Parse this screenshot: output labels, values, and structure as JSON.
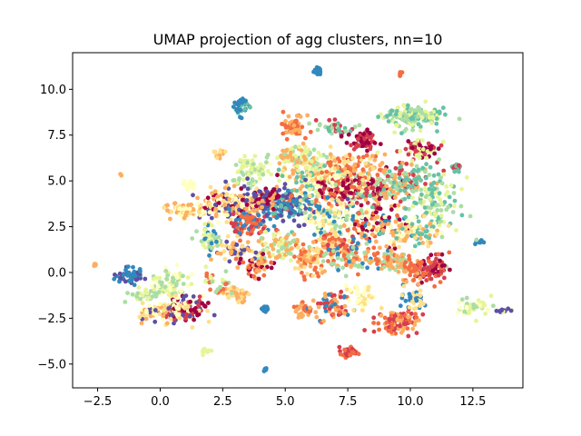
{
  "chart_data": {
    "type": "scatter",
    "title": "UMAP projection of agg clusters, nn=10",
    "xlabel": "",
    "ylabel": "",
    "xlim": [
      -3.5,
      14.5
    ],
    "ylim": [
      -6.3,
      12.0
    ],
    "xticks": [
      -2.5,
      0.0,
      2.5,
      5.0,
      7.5,
      10.0,
      12.5
    ],
    "xtick_labels": [
      "−2.5",
      "0.0",
      "2.5",
      "5.0",
      "7.5",
      "10.0",
      "12.5"
    ],
    "yticks": [
      -5.0,
      -2.5,
      0.0,
      2.5,
      5.0,
      7.5,
      10.0
    ],
    "ytick_labels": [
      "−5.0",
      "−2.5",
      "0.0",
      "2.5",
      "5.0",
      "7.5",
      "10.0"
    ],
    "grid": false,
    "legend": "none",
    "colormap": "Spectral",
    "colors": [
      "#9e0142",
      "#d53e4f",
      "#f46d43",
      "#fdae61",
      "#fee08b",
      "#ffffbf",
      "#e6f598",
      "#abdda4",
      "#66c2a5",
      "#3288bd",
      "#5e4fa2"
    ],
    "clusters": [
      {
        "cx": 6.3,
        "cy": 11.0,
        "sx": 0.08,
        "sy": 0.1,
        "n": 30,
        "c": [
          9
        ]
      },
      {
        "cx": 9.6,
        "cy": 10.85,
        "sx": 0.05,
        "sy": 0.05,
        "n": 6,
        "c": [
          2
        ]
      },
      {
        "cx": 3.2,
        "cy": 9.0,
        "sx": 0.15,
        "sy": 0.25,
        "n": 40,
        "c": [
          9,
          8
        ]
      },
      {
        "cx": 5.3,
        "cy": 8.0,
        "sx": 0.25,
        "sy": 0.3,
        "n": 60,
        "c": [
          3,
          2
        ]
      },
      {
        "cx": 7.0,
        "cy": 7.9,
        "sx": 0.3,
        "sy": 0.2,
        "n": 40,
        "c": [
          1,
          7,
          8
        ]
      },
      {
        "cx": 10.0,
        "cy": 8.5,
        "sx": 0.6,
        "sy": 0.3,
        "n": 160,
        "c": [
          7,
          8,
          6
        ]
      },
      {
        "cx": 8.1,
        "cy": 7.2,
        "sx": 0.3,
        "sy": 0.25,
        "n": 60,
        "c": [
          0,
          1
        ]
      },
      {
        "cx": 10.3,
        "cy": 6.8,
        "sx": 0.4,
        "sy": 0.3,
        "n": 70,
        "c": [
          1,
          0,
          6
        ]
      },
      {
        "cx": 11.8,
        "cy": 5.7,
        "sx": 0.12,
        "sy": 0.1,
        "n": 20,
        "c": [
          1,
          8
        ]
      },
      {
        "cx": 3.6,
        "cy": 5.5,
        "sx": 0.4,
        "sy": 0.5,
        "n": 70,
        "c": [
          7,
          6
        ]
      },
      {
        "cx": 6.2,
        "cy": 5.2,
        "sx": 0.8,
        "sy": 0.6,
        "n": 180,
        "c": [
          4,
          3,
          5,
          6,
          8
        ]
      },
      {
        "cx": 8.4,
        "cy": 4.5,
        "sx": 0.6,
        "sy": 0.5,
        "n": 140,
        "c": [
          0,
          1,
          7,
          3
        ]
      },
      {
        "cx": 7.2,
        "cy": 4.6,
        "sx": 0.5,
        "sy": 0.4,
        "n": 100,
        "c": [
          1,
          0,
          2,
          5
        ]
      },
      {
        "cx": 9.8,
        "cy": 5.0,
        "sx": 0.7,
        "sy": 0.6,
        "n": 150,
        "c": [
          8,
          7,
          1,
          3
        ]
      },
      {
        "cx": 11.0,
        "cy": 3.8,
        "sx": 0.5,
        "sy": 0.7,
        "n": 100,
        "c": [
          7,
          6,
          8
        ]
      },
      {
        "cx": 2.9,
        "cy": 3.7,
        "sx": 0.6,
        "sy": 0.5,
        "n": 180,
        "c": [
          4,
          5,
          3,
          10,
          0
        ]
      },
      {
        "cx": 3.6,
        "cy": 2.6,
        "sx": 0.4,
        "sy": 0.4,
        "n": 90,
        "c": [
          1,
          2,
          9
        ]
      },
      {
        "cx": 1.0,
        "cy": 3.4,
        "sx": 0.4,
        "sy": 0.2,
        "n": 80,
        "c": [
          4,
          5,
          3
        ]
      },
      {
        "cx": 1.2,
        "cy": 4.8,
        "sx": 0.15,
        "sy": 0.1,
        "n": 15,
        "c": [
          5
        ]
      },
      {
        "cx": 5.2,
        "cy": 3.6,
        "sx": 0.6,
        "sy": 0.5,
        "n": 140,
        "c": [
          10,
          9,
          2,
          8
        ]
      },
      {
        "cx": 4.2,
        "cy": 4.0,
        "sx": 0.4,
        "sy": 0.4,
        "n": 90,
        "c": [
          10,
          0,
          3
        ]
      },
      {
        "cx": 6.8,
        "cy": 3.0,
        "sx": 0.6,
        "sy": 0.5,
        "n": 120,
        "c": [
          5,
          4,
          7,
          9
        ]
      },
      {
        "cx": 8.6,
        "cy": 2.6,
        "sx": 0.6,
        "sy": 0.5,
        "n": 110,
        "c": [
          9,
          5,
          2,
          0,
          3
        ]
      },
      {
        "cx": 10.1,
        "cy": 2.2,
        "sx": 0.6,
        "sy": 0.5,
        "n": 100,
        "c": [
          4,
          5,
          3,
          8
        ]
      },
      {
        "cx": 4.8,
        "cy": 1.4,
        "sx": 0.5,
        "sy": 0.4,
        "n": 90,
        "c": [
          6,
          3,
          7
        ]
      },
      {
        "cx": 7.0,
        "cy": 1.5,
        "sx": 0.4,
        "sy": 0.3,
        "n": 70,
        "c": [
          1,
          2,
          4
        ]
      },
      {
        "cx": 6.0,
        "cy": 0.7,
        "sx": 0.4,
        "sy": 0.5,
        "n": 70,
        "c": [
          3,
          2,
          4
        ]
      },
      {
        "cx": 7.6,
        "cy": 0.9,
        "sx": 0.5,
        "sy": 0.4,
        "n": 80,
        "c": [
          9,
          3,
          7,
          2
        ]
      },
      {
        "cx": 3.0,
        "cy": 1.3,
        "sx": 0.4,
        "sy": 0.3,
        "n": 60,
        "c": [
          10,
          3,
          4
        ]
      },
      {
        "cx": 2.0,
        "cy": 1.8,
        "sx": 0.3,
        "sy": 0.3,
        "n": 40,
        "c": [
          9,
          7,
          6
        ]
      },
      {
        "cx": 3.8,
        "cy": 0.3,
        "sx": 0.3,
        "sy": 0.3,
        "n": 50,
        "c": [
          3,
          2,
          0
        ]
      },
      {
        "cx": 9.3,
        "cy": 0.6,
        "sx": 0.5,
        "sy": 0.3,
        "n": 70,
        "c": [
          2,
          3,
          7
        ]
      },
      {
        "cx": 10.8,
        "cy": 0.2,
        "sx": 0.4,
        "sy": 0.4,
        "n": 80,
        "c": [
          1,
          2,
          0
        ]
      },
      {
        "cx": 10.0,
        "cy": 0.0,
        "sx": 0.3,
        "sy": 0.3,
        "n": 40,
        "c": [
          3,
          2
        ]
      },
      {
        "cx": -1.2,
        "cy": -0.2,
        "sx": 0.3,
        "sy": 0.2,
        "n": 50,
        "c": [
          10,
          9
        ]
      },
      {
        "cx": 0.4,
        "cy": -0.7,
        "sx": 0.4,
        "sy": 0.5,
        "n": 80,
        "c": [
          7,
          6,
          5
        ]
      },
      {
        "cx": -0.7,
        "cy": -1.2,
        "sx": 0.3,
        "sy": 0.2,
        "n": 30,
        "c": [
          7,
          6
        ]
      },
      {
        "cx": 1.0,
        "cy": -2.0,
        "sx": 0.4,
        "sy": 0.4,
        "n": 140,
        "c": [
          0,
          1,
          4,
          5,
          10
        ]
      },
      {
        "cx": -0.2,
        "cy": -2.2,
        "sx": 0.4,
        "sy": 0.3,
        "n": 60,
        "c": [
          4,
          5,
          10,
          3
        ]
      },
      {
        "cx": 3.0,
        "cy": -1.2,
        "sx": 0.3,
        "sy": 0.2,
        "n": 40,
        "c": [
          3,
          4
        ]
      },
      {
        "cx": 2.2,
        "cy": -0.6,
        "sx": 0.3,
        "sy": 0.3,
        "n": 30,
        "c": [
          6,
          7,
          2
        ]
      },
      {
        "cx": 4.2,
        "cy": -2.0,
        "sx": 0.1,
        "sy": 0.1,
        "n": 20,
        "c": [
          9
        ]
      },
      {
        "cx": 5.6,
        "cy": -2.1,
        "sx": 0.15,
        "sy": 0.2,
        "n": 20,
        "c": [
          2,
          3
        ]
      },
      {
        "cx": 6.7,
        "cy": -1.9,
        "sx": 0.4,
        "sy": 0.4,
        "n": 70,
        "c": [
          2,
          1,
          3,
          9
        ]
      },
      {
        "cx": 9.5,
        "cy": -2.7,
        "sx": 0.4,
        "sy": 0.3,
        "n": 110,
        "c": [
          1,
          2,
          3
        ]
      },
      {
        "cx": 10.2,
        "cy": -1.5,
        "sx": 0.3,
        "sy": 0.3,
        "n": 40,
        "c": [
          9,
          4
        ]
      },
      {
        "cx": 8.0,
        "cy": -1.3,
        "sx": 0.3,
        "sy": 0.3,
        "n": 40,
        "c": [
          5,
          4
        ]
      },
      {
        "cx": 12.6,
        "cy": -1.8,
        "sx": 0.4,
        "sy": 0.25,
        "n": 50,
        "c": [
          6,
          7,
          5
        ]
      },
      {
        "cx": 13.7,
        "cy": -2.1,
        "sx": 0.15,
        "sy": 0.05,
        "n": 12,
        "c": [
          6,
          10
        ]
      },
      {
        "cx": 7.5,
        "cy": -4.3,
        "sx": 0.2,
        "sy": 0.15,
        "n": 35,
        "c": [
          1,
          2
        ]
      },
      {
        "cx": 4.2,
        "cy": -5.3,
        "sx": 0.06,
        "sy": 0.05,
        "n": 8,
        "c": [
          9
        ]
      },
      {
        "cx": 1.8,
        "cy": -4.3,
        "sx": 0.1,
        "sy": 0.12,
        "n": 12,
        "c": [
          6
        ]
      },
      {
        "cx": -2.6,
        "cy": 0.4,
        "sx": 0.05,
        "sy": 0.05,
        "n": 5,
        "c": [
          3
        ]
      },
      {
        "cx": -1.6,
        "cy": 5.3,
        "sx": 0.04,
        "sy": 0.04,
        "n": 3,
        "c": [
          3
        ]
      },
      {
        "cx": 12.7,
        "cy": 1.7,
        "sx": 0.08,
        "sy": 0.08,
        "n": 8,
        "c": [
          9,
          7
        ]
      },
      {
        "cx": 2.4,
        "cy": 6.5,
        "sx": 0.15,
        "sy": 0.1,
        "n": 15,
        "c": [
          3,
          4
        ]
      },
      {
        "cx": 5.5,
        "cy": 6.3,
        "sx": 0.5,
        "sy": 0.3,
        "n": 80,
        "c": [
          6,
          7,
          3
        ]
      },
      {
        "cx": 7.8,
        "cy": 5.8,
        "sx": 0.5,
        "sy": 0.3,
        "n": 70,
        "c": [
          3,
          4,
          2
        ]
      }
    ]
  }
}
